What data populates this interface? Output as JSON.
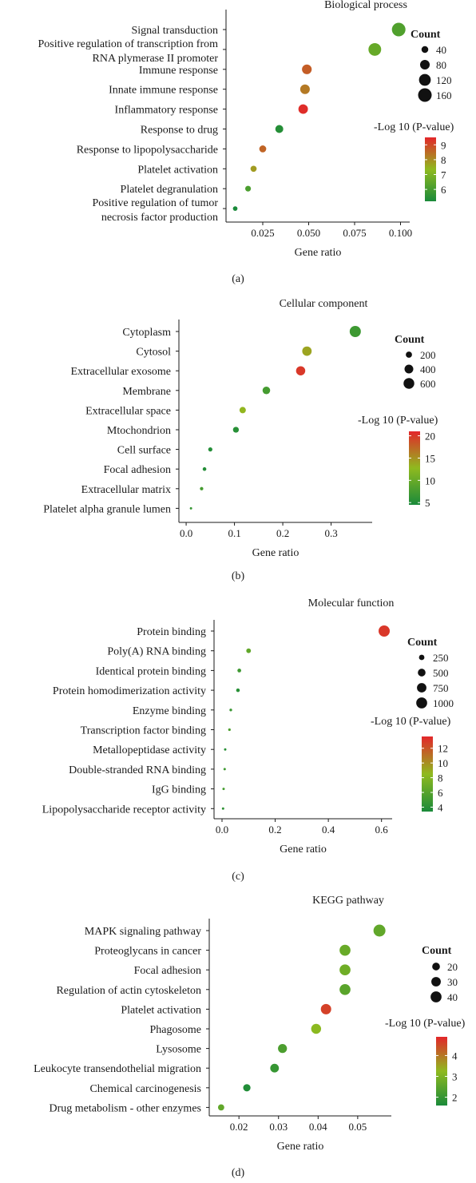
{
  "chart_data": [
    {
      "type": "scatter",
      "title": "Biological process",
      "panel_label": "(a)",
      "xlabel": "Gene ratio",
      "xlim": [
        0.005,
        0.105
      ],
      "xticks": [
        0.025,
        0.05,
        0.075,
        0.1
      ],
      "xtick_labels": [
        "0.025",
        "0.050",
        "0.075",
        "0.100"
      ],
      "categories": [
        "Signal transduction",
        "Positive regulation of transcription from\nRNA plymerase II promoter",
        "Immune response",
        "Innate immune response",
        "Inflammatory response",
        "Response to drug",
        "Response to lipopolysaccharide",
        "Platelet activation",
        "Platelet degranulation",
        "Positive regulation of tumor\nnecrosis factor production"
      ],
      "points": [
        {
          "x": 0.099,
          "count": 160,
          "logp": 6.2
        },
        {
          "x": 0.086,
          "count": 140,
          "logp": 6.6
        },
        {
          "x": 0.049,
          "count": 82,
          "logp": 8.7
        },
        {
          "x": 0.048,
          "count": 80,
          "logp": 8.3
        },
        {
          "x": 0.047,
          "count": 78,
          "logp": 9.4
        },
        {
          "x": 0.034,
          "count": 55,
          "logp": 5.4
        },
        {
          "x": 0.025,
          "count": 42,
          "logp": 8.6
        },
        {
          "x": 0.02,
          "count": 33,
          "logp": 7.8
        },
        {
          "x": 0.017,
          "count": 28,
          "logp": 6.1
        },
        {
          "x": 0.01,
          "count": 18,
          "logp": 5.2
        }
      ],
      "size_legend": {
        "title": "Count",
        "values": [
          40,
          80,
          120,
          160
        ]
      },
      "color_legend": {
        "title": "-Log 10 (P-value)",
        "ticks": [
          6,
          7,
          8,
          9
        ],
        "range": [
          5.2,
          9.5
        ],
        "low_color": "#1a8a3a",
        "mid_color": "#8fba1f",
        "high_color": "#e3262a"
      }
    },
    {
      "type": "scatter",
      "title": "Cellular component",
      "panel_label": "(b)",
      "xlabel": "Gene ratio",
      "xlim": [
        -0.015,
        0.385
      ],
      "xticks": [
        0.0,
        0.1,
        0.2,
        0.3
      ],
      "xtick_labels": [
        "0.0",
        "0.1",
        "0.2",
        "0.3"
      ],
      "categories": [
        "Cytoplasm",
        "Cytosol",
        "Extracellular exosome",
        "Membrane",
        "Extracellular space",
        "Mtochondrion",
        "Cell surface",
        "Focal adhesion",
        "Extracellular matrix",
        "Platelet alpha granule lumen"
      ],
      "points": [
        {
          "x": 0.35,
          "count": 650,
          "logp": 7.0
        },
        {
          "x": 0.25,
          "count": 460,
          "logp": 14.0
        },
        {
          "x": 0.237,
          "count": 440,
          "logp": 20.0
        },
        {
          "x": 0.166,
          "count": 300,
          "logp": 7.5
        },
        {
          "x": 0.117,
          "count": 210,
          "logp": 13.0
        },
        {
          "x": 0.103,
          "count": 180,
          "logp": 5.5
        },
        {
          "x": 0.05,
          "count": 90,
          "logp": 5.2
        },
        {
          "x": 0.038,
          "count": 70,
          "logp": 5.2
        },
        {
          "x": 0.032,
          "count": 60,
          "logp": 7.5
        },
        {
          "x": 0.01,
          "count": 20,
          "logp": 6.5
        }
      ],
      "size_legend": {
        "title": "Count",
        "values": [
          200,
          400,
          600
        ]
      },
      "color_legend": {
        "title": "-Log 10 (P-value)",
        "ticks": [
          5,
          10,
          15,
          20
        ],
        "range": [
          4.5,
          21
        ],
        "low_color": "#1a8a3a",
        "mid_color": "#8fba1f",
        "high_color": "#e3262a"
      }
    },
    {
      "type": "scatter",
      "title": "Molecular function",
      "panel_label": "(c)",
      "xlabel": "Gene ratio",
      "xlim": [
        -0.03,
        0.64
      ],
      "xticks": [
        0.0,
        0.2,
        0.4,
        0.6
      ],
      "xtick_labels": [
        "0.0",
        "0.2",
        "0.4",
        "0.6"
      ],
      "categories": [
        "Protein binding",
        "Poly(A) RNA binding",
        "Identical protein binding",
        "Protein homodimerization activity",
        "Enzyme binding",
        "Transcription factor binding",
        "Metallopeptidase activity",
        "Double-stranded RNA binding",
        "IgG binding",
        "Lipopolysaccharide receptor activity"
      ],
      "points": [
        {
          "x": 0.61,
          "count": 1050,
          "logp": 13.0
        },
        {
          "x": 0.1,
          "count": 180,
          "logp": 6.5
        },
        {
          "x": 0.065,
          "count": 120,
          "logp": 5.0
        },
        {
          "x": 0.06,
          "count": 110,
          "logp": 4.0
        },
        {
          "x": 0.033,
          "count": 60,
          "logp": 4.8
        },
        {
          "x": 0.028,
          "count": 55,
          "logp": 5.6
        },
        {
          "x": 0.012,
          "count": 25,
          "logp": 4.0
        },
        {
          "x": 0.01,
          "count": 20,
          "logp": 5.0
        },
        {
          "x": 0.006,
          "count": 12,
          "logp": 5.3
        },
        {
          "x": 0.004,
          "count": 8,
          "logp": 4.3
        }
      ],
      "size_legend": {
        "title": "Count",
        "values": [
          250,
          500,
          750,
          1000
        ]
      },
      "color_legend": {
        "title": "-Log 10 (P-value)",
        "ticks": [
          4,
          6,
          8,
          10,
          12
        ],
        "range": [
          3.4,
          13.6
        ],
        "low_color": "#1a8a3a",
        "mid_color": "#8fba1f",
        "high_color": "#e3262a"
      }
    },
    {
      "type": "scatter",
      "title": "KEGG pathway",
      "panel_label": "(d)",
      "xlabel": "Gene ratio",
      "xlim": [
        0.0125,
        0.0585
      ],
      "xticks": [
        0.02,
        0.03,
        0.04,
        0.05
      ],
      "xtick_labels": [
        "0.02",
        "0.03",
        "0.04",
        "0.05"
      ],
      "categories": [
        "MAPK signaling pathway",
        "Proteoglycans in cancer",
        "Focal adhesion",
        "Regulation of actin cytoskeleton",
        "Platelet activation",
        "Phagosome",
        "Lysosome",
        "Leukocyte transendothelial migration",
        "Chemical carcinogenesis",
        "Drug metabolism - other enzymes"
      ],
      "points": [
        {
          "x": 0.0555,
          "count": 48,
          "logp": 2.6
        },
        {
          "x": 0.0468,
          "count": 40,
          "logp": 2.7
        },
        {
          "x": 0.0468,
          "count": 40,
          "logp": 2.8
        },
        {
          "x": 0.0468,
          "count": 40,
          "logp": 2.5
        },
        {
          "x": 0.042,
          "count": 36,
          "logp": 4.6
        },
        {
          "x": 0.0395,
          "count": 33,
          "logp": 3.2
        },
        {
          "x": 0.031,
          "count": 27,
          "logp": 2.3
        },
        {
          "x": 0.029,
          "count": 25,
          "logp": 2.0
        },
        {
          "x": 0.022,
          "count": 18,
          "logp": 1.7
        },
        {
          "x": 0.0155,
          "count": 13,
          "logp": 2.6
        }
      ],
      "size_legend": {
        "title": "Count",
        "values": [
          20,
          30,
          40
        ]
      },
      "color_legend": {
        "title": "-Log 10 (P-value)",
        "ticks": [
          2,
          3,
          4
        ],
        "range": [
          1.6,
          4.9
        ],
        "low_color": "#1a8a3a",
        "mid_color": "#8fba1f",
        "high_color": "#e3262a"
      }
    }
  ]
}
